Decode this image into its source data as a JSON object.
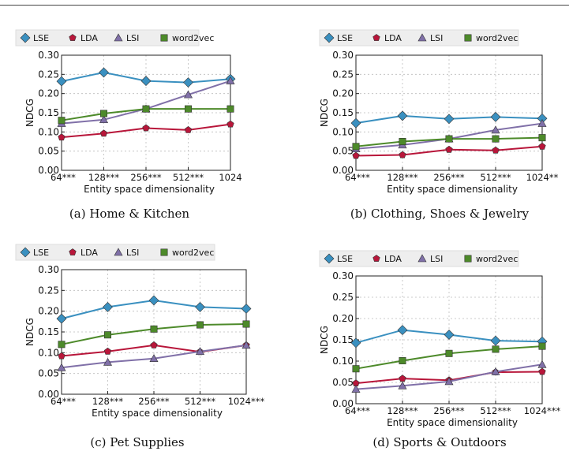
{
  "colors": {
    "LSE": "#3a90c0",
    "LDA": "#b8163a",
    "LSI": "#8070a8",
    "word2vec": "#4d8a2a"
  },
  "chart_data": [
    {
      "type": "line",
      "caption": "(a) Home & Kitchen",
      "ylabel": "NDCG",
      "xlabel": "Entity space dimensionality",
      "ylim": [
        0.0,
        0.3
      ],
      "yticks": [
        "0.00",
        "0.05",
        "0.10",
        "0.15",
        "0.20",
        "0.25",
        "0.30"
      ],
      "categories": [
        "64***",
        "128***",
        "256***",
        "512***",
        "1024"
      ],
      "legend_position": "top",
      "grid": true,
      "series": [
        {
          "name": "LSE",
          "values": [
            0.232,
            0.255,
            0.233,
            0.229,
            0.238
          ]
        },
        {
          "name": "LDA",
          "values": [
            0.086,
            0.096,
            0.11,
            0.105,
            0.12
          ]
        },
        {
          "name": "LSI",
          "values": [
            0.122,
            0.132,
            0.16,
            0.197,
            0.233
          ]
        },
        {
          "name": "word2vec",
          "values": [
            0.13,
            0.148,
            0.16,
            0.16,
            0.16
          ]
        }
      ]
    },
    {
      "type": "line",
      "caption": "(b) Clothing, Shoes & Jewelry",
      "ylabel": "NDCG",
      "xlabel": "Entity space dimensionality",
      "ylim": [
        0.0,
        0.3
      ],
      "yticks": [
        "0.00",
        "0.05",
        "0.10",
        "0.15",
        "0.20",
        "0.25",
        "0.30"
      ],
      "categories": [
        "64***",
        "128***",
        "256***",
        "512***",
        "1024**"
      ],
      "legend_position": "top",
      "grid": true,
      "series": [
        {
          "name": "LSE",
          "values": [
            0.123,
            0.142,
            0.134,
            0.139,
            0.135
          ]
        },
        {
          "name": "LDA",
          "values": [
            0.038,
            0.04,
            0.054,
            0.052,
            0.062
          ]
        },
        {
          "name": "LSI",
          "values": [
            0.056,
            0.066,
            0.082,
            0.105,
            0.122
          ]
        },
        {
          "name": "word2vec",
          "values": [
            0.062,
            0.075,
            0.082,
            0.082,
            0.085
          ]
        }
      ]
    },
    {
      "type": "line",
      "caption": "(c) Pet Supplies",
      "ylabel": "NDCG",
      "xlabel": "Entity space dimensionality",
      "ylim": [
        0.0,
        0.3
      ],
      "yticks": [
        "0.00",
        "0.05",
        "0.10",
        "0.15",
        "0.20",
        "0.25",
        "0.30"
      ],
      "categories": [
        "64***",
        "128***",
        "256***",
        "512***",
        "1024***"
      ],
      "legend_position": "top",
      "grid": true,
      "series": [
        {
          "name": "LSE",
          "values": [
            0.182,
            0.21,
            0.226,
            0.21,
            0.206
          ]
        },
        {
          "name": "LDA",
          "values": [
            0.092,
            0.103,
            0.118,
            0.102,
            0.118
          ]
        },
        {
          "name": "LSI",
          "values": [
            0.064,
            0.077,
            0.086,
            0.103,
            0.118
          ]
        },
        {
          "name": "word2vec",
          "values": [
            0.12,
            0.143,
            0.157,
            0.167,
            0.169
          ]
        }
      ]
    },
    {
      "type": "line",
      "caption": "(d) Sports & Outdoors",
      "ylabel": "NDCG",
      "xlabel": "Entity space dimensionality",
      "ylim": [
        0.0,
        0.3
      ],
      "yticks": [
        "0.00",
        "0.05",
        "0.10",
        "0.15",
        "0.20",
        "0.25",
        "0.30"
      ],
      "categories": [
        "64***",
        "128***",
        "256***",
        "512***",
        "1024***"
      ],
      "legend_position": "top",
      "grid": true,
      "series": [
        {
          "name": "LSE",
          "values": [
            0.143,
            0.173,
            0.162,
            0.148,
            0.146
          ]
        },
        {
          "name": "LDA",
          "values": [
            0.048,
            0.059,
            0.055,
            0.074,
            0.075
          ]
        },
        {
          "name": "LSI",
          "values": [
            0.034,
            0.042,
            0.052,
            0.075,
            0.092
          ]
        },
        {
          "name": "word2vec",
          "values": [
            0.082,
            0.101,
            0.118,
            0.128,
            0.135
          ]
        }
      ]
    }
  ]
}
